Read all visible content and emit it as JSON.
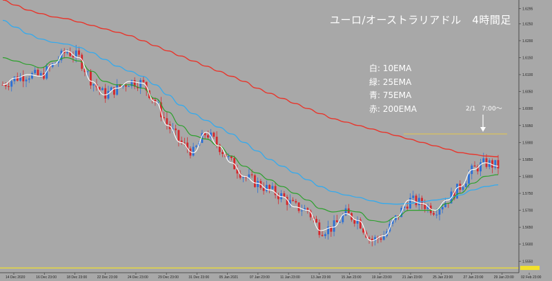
{
  "chart_data": {
    "type": "candlestick",
    "title": "ユーロ/オーストラリアドル　4時間足",
    "legend": [
      {
        "label": "白: 10EMA",
        "color": "#ffffff"
      },
      {
        "label": "緑: 25EMA",
        "color": "#2ca02c"
      },
      {
        "label": "青: 75EMA",
        "color": "#33aaee"
      },
      {
        "label": "赤: 200EMA",
        "color": "#e8352b"
      }
    ],
    "annotation": "2/1　7:00～",
    "x_tick_labels": [
      "14 Dec 2020",
      "16 Dec 23:00",
      "18 Dec 23:00",
      "22 Dec 23:00",
      "24 Dec 23:00",
      "29 Dec 23:00",
      "31 Dec 23:00",
      "05 Jan 2021",
      "07 Jan 23:00",
      "11 Jan 23:00",
      "13 Jan 23:00",
      "15 Jan 23:00",
      "19 Jan 23:00",
      "21 Jan 23:00",
      "25 Jan 23:00",
      "27 Jan 23:00",
      "29 Jan 23:00",
      "02 Feb 23:00"
    ],
    "y_tick_labels": [
      "1.6295",
      "1.6250",
      "1.6200",
      "1.6150",
      "1.6100",
      "1.6050",
      "1.6000",
      "1.5950",
      "1.5900",
      "1.5850",
      "1.5800",
      "1.5750",
      "1.5700",
      "1.5650",
      "1.5600",
      "1.5550"
    ],
    "ylim": [
      1.552,
      1.632
    ],
    "resistance_level": 1.5925,
    "support_level": 1.553,
    "ema10": [
      1.607,
      1.609,
      1.61,
      1.6095,
      1.613,
      1.617,
      1.615,
      1.608,
      1.604,
      1.606,
      1.608,
      1.6075,
      1.602,
      1.595,
      1.59,
      1.587,
      1.593,
      1.589,
      1.584,
      1.58,
      1.578,
      1.576,
      1.574,
      1.571,
      1.57,
      1.564,
      1.565,
      1.569,
      1.567,
      1.561,
      1.5625,
      1.568,
      1.573,
      1.572,
      1.57,
      1.573,
      1.577,
      1.582,
      1.584,
      1.583
    ],
    "ema25": [
      1.615,
      1.614,
      1.613,
      1.612,
      1.614,
      1.615,
      1.614,
      1.611,
      1.608,
      1.607,
      1.607,
      1.606,
      1.603,
      1.599,
      1.595,
      1.592,
      1.591,
      1.589,
      1.586,
      1.583,
      1.581,
      1.579,
      1.577,
      1.575,
      1.573,
      1.5705,
      1.5695,
      1.57,
      1.5695,
      1.567,
      1.5665,
      1.568,
      1.57,
      1.57,
      1.57,
      1.572,
      1.575,
      1.578,
      1.58,
      1.5805
    ],
    "ema75": [
      1.626,
      1.624,
      1.622,
      1.6205,
      1.6195,
      1.619,
      1.618,
      1.6165,
      1.6145,
      1.6125,
      1.611,
      1.6095,
      1.607,
      1.604,
      1.601,
      1.5985,
      1.5965,
      1.5945,
      1.5925,
      1.59,
      1.5875,
      1.585,
      1.583,
      1.581,
      1.579,
      1.577,
      1.5755,
      1.5745,
      1.5738,
      1.5728,
      1.572,
      1.5718,
      1.572,
      1.5725,
      1.573,
      1.5735,
      1.5745,
      1.576,
      1.577,
      1.5775
    ],
    "ema200": [
      1.632,
      1.6305,
      1.629,
      1.628,
      1.627,
      1.6265,
      1.6255,
      1.6245,
      1.6235,
      1.6225,
      1.6215,
      1.62,
      1.6185,
      1.617,
      1.6155,
      1.614,
      1.6125,
      1.611,
      1.6095,
      1.608,
      1.606,
      1.6045,
      1.603,
      1.6015,
      1.6,
      1.5985,
      1.597,
      1.596,
      1.595,
      1.594,
      1.593,
      1.592,
      1.591,
      1.59,
      1.589,
      1.588,
      1.587,
      1.5865,
      1.586,
      1.5858
    ]
  }
}
